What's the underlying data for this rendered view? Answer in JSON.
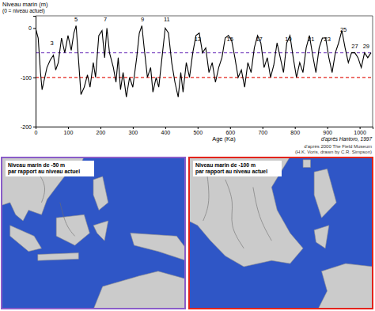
{
  "chart_data": {
    "type": "line",
    "ylabel": "Niveau marin (m)",
    "ylabel_note": "(0 = niveau actuel)",
    "xlabel": "Age (Ka)",
    "source": "d'après Hantoro, 1997",
    "color": "#000000",
    "x": [
      0,
      8,
      15,
      20,
      25,
      35,
      45,
      55,
      62,
      70,
      80,
      90,
      100,
      110,
      118,
      125,
      132,
      140,
      150,
      160,
      168,
      178,
      185,
      195,
      205,
      213,
      220,
      228,
      240,
      248,
      255,
      262,
      270,
      280,
      290,
      300,
      312,
      320,
      328,
      335,
      345,
      355,
      362,
      372,
      380,
      390,
      400,
      410,
      420,
      430,
      440,
      448,
      455,
      465,
      475,
      485,
      495,
      505,
      515,
      525,
      535,
      545,
      555,
      565,
      575,
      585,
      595,
      605,
      615,
      625,
      635,
      645,
      655,
      665,
      675,
      685,
      695,
      705,
      715,
      725,
      735,
      745,
      755,
      765,
      775,
      785,
      795,
      805,
      815,
      825,
      835,
      845,
      855,
      865,
      875,
      885,
      895,
      905,
      915,
      925,
      935,
      945,
      955,
      965,
      975,
      985,
      995,
      1005,
      1015,
      1025,
      1035
    ],
    "values": [
      0,
      -20,
      -90,
      -125,
      -110,
      -80,
      -65,
      -55,
      -85,
      -70,
      -20,
      -50,
      -15,
      -45,
      -10,
      5,
      -60,
      -135,
      -120,
      -95,
      -120,
      -70,
      -100,
      -15,
      -5,
      -60,
      0,
      -50,
      -80,
      -110,
      -60,
      -125,
      -90,
      -140,
      -100,
      -120,
      -60,
      -10,
      5,
      -40,
      -100,
      -80,
      -130,
      -100,
      -120,
      -60,
      0,
      -10,
      -70,
      -110,
      -140,
      -90,
      -130,
      -70,
      -100,
      -50,
      -15,
      -10,
      -50,
      -40,
      -90,
      -70,
      -110,
      -80,
      -60,
      -20,
      -15,
      -25,
      -60,
      -100,
      -85,
      -120,
      -70,
      -90,
      -40,
      -15,
      -30,
      -80,
      -60,
      -100,
      -75,
      -30,
      -60,
      -90,
      -30,
      -15,
      -60,
      -100,
      -70,
      -90,
      -40,
      -15,
      -55,
      -90,
      -40,
      -20,
      -20,
      -60,
      -90,
      -50,
      -30,
      -5,
      -40,
      -70,
      -50,
      -50,
      -60,
      -80,
      -50,
      -60,
      -50
    ],
    "xlim": [
      0,
      1040
    ],
    "ylim": [
      -200,
      25
    ],
    "xticks": [
      0,
      100,
      200,
      300,
      400,
      500,
      600,
      700,
      800,
      900,
      1000
    ],
    "yticks": [
      0,
      -100,
      -200
    ],
    "reference_lines": [
      {
        "value": -50,
        "color": "#8a5cc8",
        "line_style": "dashed"
      },
      {
        "value": -100,
        "color": "#e3231b",
        "line_style": "dashed"
      }
    ],
    "annotations": [
      {
        "text": "3",
        "x": 50,
        "y": -30
      },
      {
        "text": "5",
        "x": 125,
        "y": 18
      },
      {
        "text": "7",
        "x": 215,
        "y": 18
      },
      {
        "text": "9",
        "x": 330,
        "y": 18
      },
      {
        "text": "11",
        "x": 405,
        "y": 18
      },
      {
        "text": "13",
        "x": 500,
        "y": -22
      },
      {
        "text": "15",
        "x": 600,
        "y": -22
      },
      {
        "text": "17",
        "x": 690,
        "y": -22
      },
      {
        "text": "19",
        "x": 780,
        "y": -22
      },
      {
        "text": "21",
        "x": 850,
        "y": -22
      },
      {
        "text": "23",
        "x": 900,
        "y": -22
      },
      {
        "text": "25",
        "x": 950,
        "y": -3
      },
      {
        "text": "27",
        "x": 985,
        "y": -37
      },
      {
        "text": "29",
        "x": 1020,
        "y": -37
      }
    ]
  },
  "maps": {
    "credit_lines": [
      "d'après 2000 The Field Museum",
      "(H.K. Voris, drawn by C.R. Simpson)"
    ],
    "panels": [
      {
        "title_lines": [
          "Niveau marin de -50 m",
          "par rapport au niveau actuel"
        ],
        "color": "#8a5cc8"
      },
      {
        "title_lines": [
          "Niveau marin de -100 m",
          "par rapport au niveau actuel"
        ],
        "color": "#e3231b"
      }
    ]
  }
}
